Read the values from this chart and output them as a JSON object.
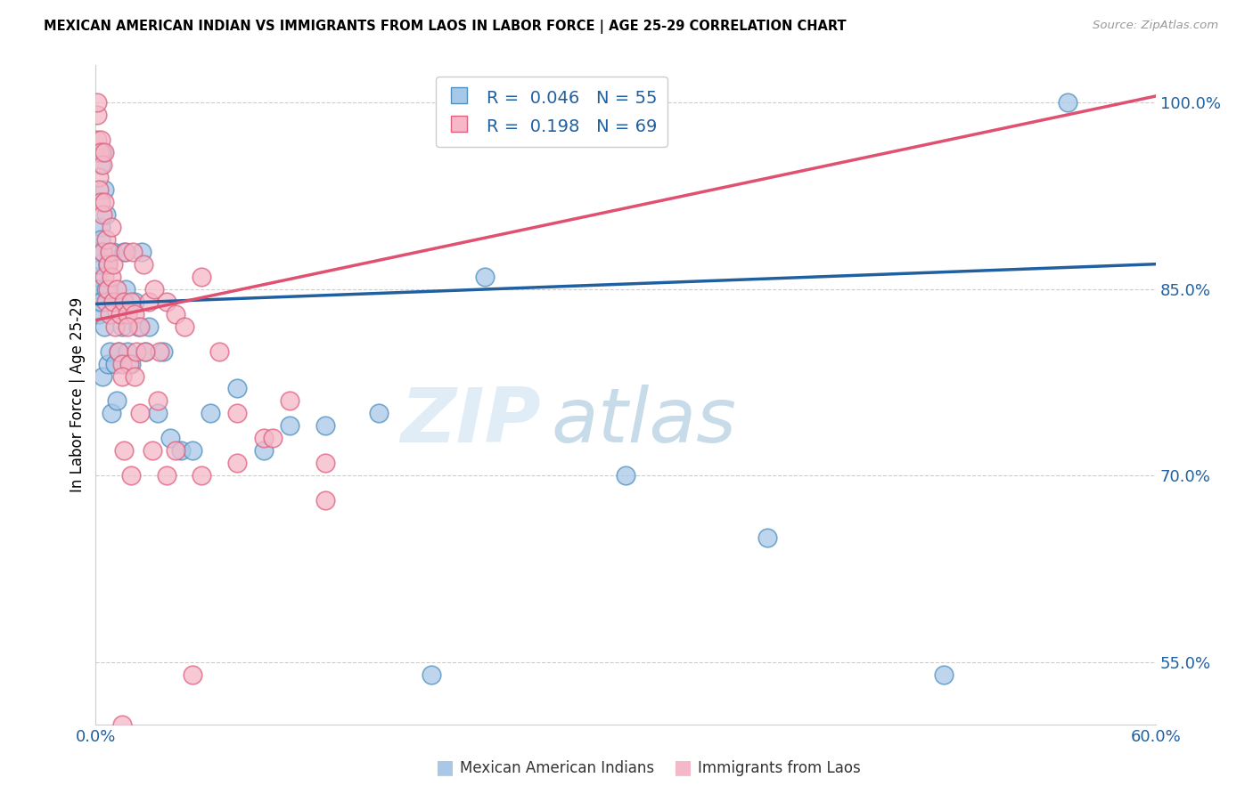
{
  "title": "MEXICAN AMERICAN INDIAN VS IMMIGRANTS FROM LAOS IN LABOR FORCE | AGE 25-29 CORRELATION CHART",
  "source": "Source: ZipAtlas.com",
  "ylabel": "In Labor Force | Age 25-29",
  "xlim": [
    0.0,
    0.6
  ],
  "ylim": [
    0.5,
    1.03
  ],
  "xtick_labels": [
    "0.0%",
    "",
    "",
    "",
    "",
    "",
    "60.0%"
  ],
  "yticks_right": [
    0.55,
    0.7,
    0.85,
    1.0
  ],
  "ytick_labels_right": [
    "55.0%",
    "70.0%",
    "85.0%",
    "100.0%"
  ],
  "blue_fill_color": "#a8c8e8",
  "pink_fill_color": "#f4b8c8",
  "blue_edge_color": "#5090c0",
  "pink_edge_color": "#e06080",
  "blue_line_color": "#2060a0",
  "pink_line_color": "#e05070",
  "r_blue": 0.046,
  "n_blue": 55,
  "r_pink": 0.198,
  "n_pink": 69,
  "legend_label_blue": "Mexican American Indians",
  "legend_label_pink": "Immigrants from Laos",
  "watermark": "ZIPatlas",
  "blue_trend_x0": 0.0,
  "blue_trend_y0": 0.838,
  "blue_trend_x1": 0.6,
  "blue_trend_y1": 0.87,
  "pink_trend_x0": 0.0,
  "pink_trend_y0": 0.825,
  "pink_trend_x1": 0.6,
  "pink_trend_y1": 1.005,
  "blue_scatter_x": [
    0.001,
    0.001,
    0.001,
    0.002,
    0.002,
    0.002,
    0.003,
    0.003,
    0.003,
    0.003,
    0.004,
    0.004,
    0.004,
    0.005,
    0.005,
    0.006,
    0.006,
    0.007,
    0.007,
    0.008,
    0.008,
    0.009,
    0.01,
    0.01,
    0.011,
    0.012,
    0.013,
    0.014,
    0.015,
    0.016,
    0.017,
    0.018,
    0.02,
    0.022,
    0.024,
    0.026,
    0.028,
    0.03,
    0.035,
    0.038,
    0.042,
    0.048,
    0.055,
    0.065,
    0.08,
    0.095,
    0.11,
    0.13,
    0.16,
    0.19,
    0.22,
    0.3,
    0.38,
    0.48,
    0.55
  ],
  "blue_scatter_y": [
    0.84,
    0.86,
    0.88,
    0.83,
    0.87,
    0.85,
    0.9,
    0.84,
    0.89,
    0.95,
    0.78,
    0.96,
    0.88,
    0.93,
    0.82,
    0.91,
    0.85,
    0.79,
    0.87,
    0.8,
    0.88,
    0.75,
    0.84,
    0.88,
    0.79,
    0.76,
    0.8,
    0.84,
    0.82,
    0.88,
    0.85,
    0.8,
    0.79,
    0.84,
    0.82,
    0.88,
    0.8,
    0.82,
    0.75,
    0.8,
    0.73,
    0.72,
    0.72,
    0.75,
    0.77,
    0.72,
    0.74,
    0.74,
    0.75,
    0.54,
    0.86,
    0.7,
    0.65,
    0.54,
    1.0
  ],
  "pink_scatter_x": [
    0.001,
    0.001,
    0.001,
    0.002,
    0.002,
    0.002,
    0.003,
    0.003,
    0.003,
    0.004,
    0.004,
    0.004,
    0.005,
    0.005,
    0.005,
    0.006,
    0.006,
    0.007,
    0.007,
    0.008,
    0.008,
    0.009,
    0.009,
    0.01,
    0.01,
    0.011,
    0.012,
    0.013,
    0.014,
    0.015,
    0.016,
    0.017,
    0.018,
    0.019,
    0.02,
    0.021,
    0.022,
    0.023,
    0.025,
    0.027,
    0.03,
    0.033,
    0.036,
    0.04,
    0.045,
    0.05,
    0.06,
    0.07,
    0.08,
    0.095,
    0.11,
    0.13,
    0.015,
    0.018,
    0.022,
    0.028,
    0.035,
    0.045,
    0.06,
    0.08,
    0.1,
    0.13,
    0.016,
    0.02,
    0.025,
    0.032,
    0.04,
    0.055,
    0.015
  ],
  "pink_scatter_y": [
    0.99,
    1.0,
    0.97,
    0.96,
    0.94,
    0.93,
    0.97,
    0.92,
    0.96,
    0.95,
    0.91,
    0.88,
    0.96,
    0.86,
    0.92,
    0.89,
    0.84,
    0.85,
    0.87,
    0.83,
    0.88,
    0.9,
    0.86,
    0.84,
    0.87,
    0.82,
    0.85,
    0.8,
    0.83,
    0.79,
    0.84,
    0.88,
    0.83,
    0.79,
    0.84,
    0.88,
    0.83,
    0.8,
    0.82,
    0.87,
    0.84,
    0.85,
    0.8,
    0.84,
    0.83,
    0.82,
    0.86,
    0.8,
    0.75,
    0.73,
    0.76,
    0.68,
    0.78,
    0.82,
    0.78,
    0.8,
    0.76,
    0.72,
    0.7,
    0.71,
    0.73,
    0.71,
    0.72,
    0.7,
    0.75,
    0.72,
    0.7,
    0.54,
    0.5
  ]
}
